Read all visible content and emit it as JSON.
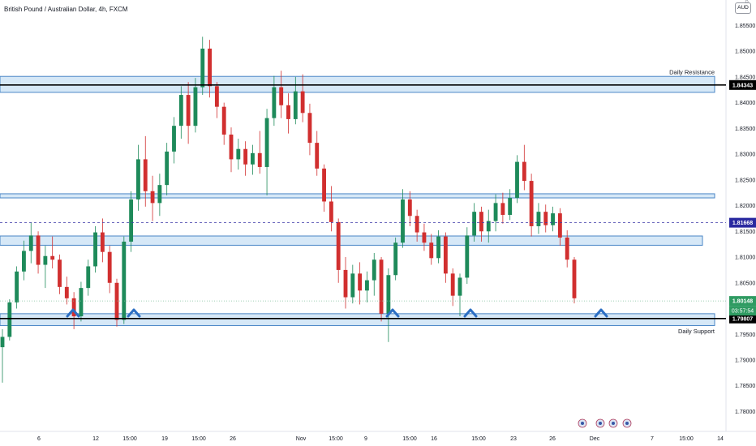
{
  "header": {
    "title": "British Pound / Australian Dollar, 4h, FXCM"
  },
  "axis": {
    "currency": "AUD",
    "currency_superscript": "D"
  },
  "chart_data": {
    "type": "candlestick",
    "title": "British Pound / Australian Dollar, 4h, FXCM",
    "ylim": [
      1.777,
      1.8585
    ],
    "y_ticks": [
      "1.85500",
      "1.85000",
      "1.84500",
      "1.84000",
      "1.83500",
      "1.83000",
      "1.82500",
      "1.82000",
      "1.81500",
      "1.81000",
      "1.80500",
      "1.80000",
      "1.79500",
      "1.79000",
      "1.78500",
      "1.78000"
    ],
    "x_ticks": [
      "6",
      "12",
      "15:00",
      "19",
      "15:00",
      "26",
      "Nov",
      "15:00",
      "9",
      "15:00",
      "16",
      "15:00",
      "23",
      "26",
      "Dec",
      "7",
      "15:00",
      "14"
    ],
    "zones": [
      {
        "low": 1.842,
        "high": 1.8451
      },
      {
        "low": 1.8215,
        "high": 1.8223
      },
      {
        "low": 1.8123,
        "high": 1.8141
      },
      {
        "low": 1.7967,
        "high": 1.799
      }
    ],
    "lines": [
      {
        "value": 1.84343,
        "label": "1.84343",
        "style": "solid"
      },
      {
        "value": 1.79807,
        "label": "1.79807",
        "style": "solid"
      },
      {
        "value": 1.81668,
        "label": "1.81668",
        "style": "dashed"
      },
      {
        "value": 1.80148,
        "label": "1.80148",
        "style": "dotted"
      }
    ],
    "annotations": [
      {
        "text": "Daily Resistance",
        "y": 1.846
      },
      {
        "text": "Daily Support",
        "y": 1.7957
      }
    ],
    "countdown": "03:57:54",
    "candles": [
      {
        "o": 1.7925,
        "h": 1.796,
        "l": 1.7856,
        "c": 1.7945
      },
      {
        "o": 1.7945,
        "h": 1.8018,
        "l": 1.7938,
        "c": 1.8012
      },
      {
        "o": 1.8012,
        "h": 1.8082,
        "l": 1.8,
        "c": 1.8072
      },
      {
        "o": 1.8072,
        "h": 1.8132,
        "l": 1.8055,
        "c": 1.8112
      },
      {
        "o": 1.8112,
        "h": 1.8168,
        "l": 1.8088,
        "c": 1.8142
      },
      {
        "o": 1.8142,
        "h": 1.815,
        "l": 1.8068,
        "c": 1.8085
      },
      {
        "o": 1.8085,
        "h": 1.8122,
        "l": 1.804,
        "c": 1.8102
      },
      {
        "o": 1.8102,
        "h": 1.814,
        "l": 1.8078,
        "c": 1.8095
      },
      {
        "o": 1.8095,
        "h": 1.8105,
        "l": 1.8028,
        "c": 1.8042
      },
      {
        "o": 1.8042,
        "h": 1.8062,
        "l": 1.8008,
        "c": 1.802
      },
      {
        "o": 1.802,
        "h": 1.8032,
        "l": 1.796,
        "c": 1.7985
      },
      {
        "o": 1.7985,
        "h": 1.8052,
        "l": 1.7975,
        "c": 1.804
      },
      {
        "o": 1.804,
        "h": 1.8095,
        "l": 1.8025,
        "c": 1.8082
      },
      {
        "o": 1.8082,
        "h": 1.816,
        "l": 1.807,
        "c": 1.8148
      },
      {
        "o": 1.8148,
        "h": 1.8175,
        "l": 1.809,
        "c": 1.811
      },
      {
        "o": 1.811,
        "h": 1.8122,
        "l": 1.803,
        "c": 1.805
      },
      {
        "o": 1.805,
        "h": 1.8058,
        "l": 1.7965,
        "c": 1.7978
      },
      {
        "o": 1.7978,
        "h": 1.814,
        "l": 1.797,
        "c": 1.813
      },
      {
        "o": 1.813,
        "h": 1.8228,
        "l": 1.811,
        "c": 1.8212
      },
      {
        "o": 1.8212,
        "h": 1.8318,
        "l": 1.819,
        "c": 1.829
      },
      {
        "o": 1.829,
        "h": 1.8335,
        "l": 1.8198,
        "c": 1.8228
      },
      {
        "o": 1.8228,
        "h": 1.8258,
        "l": 1.817,
        "c": 1.8205
      },
      {
        "o": 1.8205,
        "h": 1.8262,
        "l": 1.818,
        "c": 1.824
      },
      {
        "o": 1.824,
        "h": 1.8322,
        "l": 1.822,
        "c": 1.8305
      },
      {
        "o": 1.8305,
        "h": 1.8372,
        "l": 1.8282,
        "c": 1.8355
      },
      {
        "o": 1.8355,
        "h": 1.8432,
        "l": 1.833,
        "c": 1.8415
      },
      {
        "o": 1.8415,
        "h": 1.844,
        "l": 1.832,
        "c": 1.8355
      },
      {
        "o": 1.8355,
        "h": 1.8448,
        "l": 1.8342,
        "c": 1.843
      },
      {
        "o": 1.843,
        "h": 1.8528,
        "l": 1.8415,
        "c": 1.8505
      },
      {
        "o": 1.8505,
        "h": 1.8522,
        "l": 1.841,
        "c": 1.8432
      },
      {
        "o": 1.8432,
        "h": 1.844,
        "l": 1.837,
        "c": 1.8392
      },
      {
        "o": 1.8392,
        "h": 1.84,
        "l": 1.8318,
        "c": 1.8338
      },
      {
        "o": 1.8338,
        "h": 1.8352,
        "l": 1.8265,
        "c": 1.829
      },
      {
        "o": 1.829,
        "h": 1.833,
        "l": 1.827,
        "c": 1.831
      },
      {
        "o": 1.831,
        "h": 1.8325,
        "l": 1.8258,
        "c": 1.828
      },
      {
        "o": 1.828,
        "h": 1.8318,
        "l": 1.826,
        "c": 1.8302
      },
      {
        "o": 1.8302,
        "h": 1.8345,
        "l": 1.8262,
        "c": 1.8275
      },
      {
        "o": 1.8275,
        "h": 1.8388,
        "l": 1.822,
        "c": 1.837
      },
      {
        "o": 1.837,
        "h": 1.8452,
        "l": 1.8355,
        "c": 1.843
      },
      {
        "o": 1.843,
        "h": 1.8462,
        "l": 1.837,
        "c": 1.8395
      },
      {
        "o": 1.8395,
        "h": 1.8418,
        "l": 1.834,
        "c": 1.8368
      },
      {
        "o": 1.8368,
        "h": 1.845,
        "l": 1.8358,
        "c": 1.8422
      },
      {
        "o": 1.8422,
        "h": 1.8455,
        "l": 1.8362,
        "c": 1.838
      },
      {
        "o": 1.838,
        "h": 1.8398,
        "l": 1.8298,
        "c": 1.8322
      },
      {
        "o": 1.8322,
        "h": 1.8345,
        "l": 1.8258,
        "c": 1.8272
      },
      {
        "o": 1.8272,
        "h": 1.828,
        "l": 1.8188,
        "c": 1.8208
      },
      {
        "o": 1.8208,
        "h": 1.8238,
        "l": 1.815,
        "c": 1.8168
      },
      {
        "o": 1.8168,
        "h": 1.8175,
        "l": 1.805,
        "c": 1.8075
      },
      {
        "o": 1.8075,
        "h": 1.81,
        "l": 1.8,
        "c": 1.8022
      },
      {
        "o": 1.8022,
        "h": 1.8085,
        "l": 1.801,
        "c": 1.8068
      },
      {
        "o": 1.8068,
        "h": 1.809,
        "l": 1.8008,
        "c": 1.8035
      },
      {
        "o": 1.8035,
        "h": 1.8072,
        "l": 1.8012,
        "c": 1.8055
      },
      {
        "o": 1.8055,
        "h": 1.8108,
        "l": 1.8025,
        "c": 1.8095
      },
      {
        "o": 1.8095,
        "h": 1.81,
        "l": 1.7975,
        "c": 1.799
      },
      {
        "o": 1.799,
        "h": 1.8078,
        "l": 1.7935,
        "c": 1.8065
      },
      {
        "o": 1.8065,
        "h": 1.8138,
        "l": 1.8055,
        "c": 1.8128
      },
      {
        "o": 1.8128,
        "h": 1.8232,
        "l": 1.8118,
        "c": 1.8212
      },
      {
        "o": 1.8212,
        "h": 1.8228,
        "l": 1.816,
        "c": 1.818
      },
      {
        "o": 1.818,
        "h": 1.8192,
        "l": 1.813,
        "c": 1.8148
      },
      {
        "o": 1.8148,
        "h": 1.8165,
        "l": 1.8112,
        "c": 1.8128
      },
      {
        "o": 1.8128,
        "h": 1.8145,
        "l": 1.8085,
        "c": 1.8098
      },
      {
        "o": 1.8098,
        "h": 1.8152,
        "l": 1.8088,
        "c": 1.814
      },
      {
        "o": 1.814,
        "h": 1.8148,
        "l": 1.805,
        "c": 1.8068
      },
      {
        "o": 1.8068,
        "h": 1.8078,
        "l": 1.8005,
        "c": 1.8025
      },
      {
        "o": 1.8025,
        "h": 1.8068,
        "l": 1.7985,
        "c": 1.806
      },
      {
        "o": 1.806,
        "h": 1.8158,
        "l": 1.8048,
        "c": 1.8142
      },
      {
        "o": 1.8142,
        "h": 1.8205,
        "l": 1.813,
        "c": 1.8188
      },
      {
        "o": 1.8188,
        "h": 1.8198,
        "l": 1.813,
        "c": 1.815
      },
      {
        "o": 1.815,
        "h": 1.8192,
        "l": 1.8128,
        "c": 1.817
      },
      {
        "o": 1.817,
        "h": 1.8222,
        "l": 1.815,
        "c": 1.8205
      },
      {
        "o": 1.8205,
        "h": 1.8225,
        "l": 1.8165,
        "c": 1.8182
      },
      {
        "o": 1.8182,
        "h": 1.8232,
        "l": 1.8172,
        "c": 1.8215
      },
      {
        "o": 1.8215,
        "h": 1.8298,
        "l": 1.8205,
        "c": 1.8285
      },
      {
        "o": 1.8285,
        "h": 1.8318,
        "l": 1.823,
        "c": 1.8248
      },
      {
        "o": 1.8248,
        "h": 1.8262,
        "l": 1.814,
        "c": 1.816
      },
      {
        "o": 1.816,
        "h": 1.8205,
        "l": 1.8145,
        "c": 1.8188
      },
      {
        "o": 1.8188,
        "h": 1.8202,
        "l": 1.8148,
        "c": 1.8162
      },
      {
        "o": 1.8162,
        "h": 1.8198,
        "l": 1.815,
        "c": 1.8185
      },
      {
        "o": 1.8185,
        "h": 1.8195,
        "l": 1.8122,
        "c": 1.8138
      },
      {
        "o": 1.8138,
        "h": 1.8152,
        "l": 1.808,
        "c": 1.8095
      },
      {
        "o": 1.8095,
        "h": 1.81,
        "l": 1.801,
        "c": 1.802
      }
    ]
  }
}
